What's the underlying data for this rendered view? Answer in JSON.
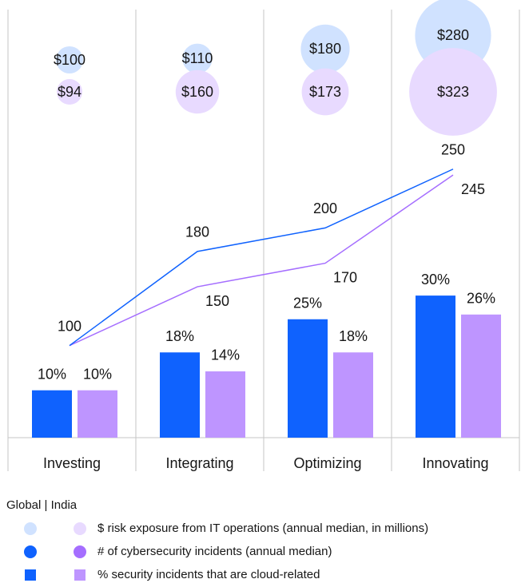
{
  "chart_data": {
    "type": "combo",
    "categories": [
      "Investing",
      "Integrating",
      "Optimizing",
      "Innovating"
    ],
    "legend_title": "Global | India",
    "groups": [
      {
        "name": "$ risk exposure from IT operations (annual median, in millions)",
        "type": "bubble",
        "series": [
          {
            "color": "#d0e2ff",
            "values": [
              100,
              110,
              180,
              280
            ],
            "value_labels": [
              "$100",
              "$110",
              "$180",
              "$280"
            ]
          },
          {
            "color": "#e8daff",
            "values": [
              94,
              160,
              173,
              323
            ],
            "value_labels": [
              "$94",
              "$160",
              "$173",
              "$323"
            ]
          }
        ]
      },
      {
        "name": "# of cybersecurity incidents (annual median)",
        "type": "line",
        "series": [
          {
            "color": "#0f62fe",
            "values": [
              100,
              180,
              200,
              250
            ]
          },
          {
            "color": "#a56eff",
            "values": [
              100,
              150,
              170,
              245
            ]
          }
        ]
      },
      {
        "name": "% security incidents that are cloud-related",
        "type": "bar",
        "series": [
          {
            "color": "#0f62fe",
            "values": [
              10,
              18,
              25,
              30
            ],
            "value_labels": [
              "10%",
              "18%",
              "25%",
              "30%"
            ]
          },
          {
            "color": "#be95ff",
            "values": [
              10,
              14,
              18,
              26
            ],
            "value_labels": [
              "10%",
              "14%",
              "18%",
              "26%"
            ]
          }
        ]
      }
    ]
  }
}
